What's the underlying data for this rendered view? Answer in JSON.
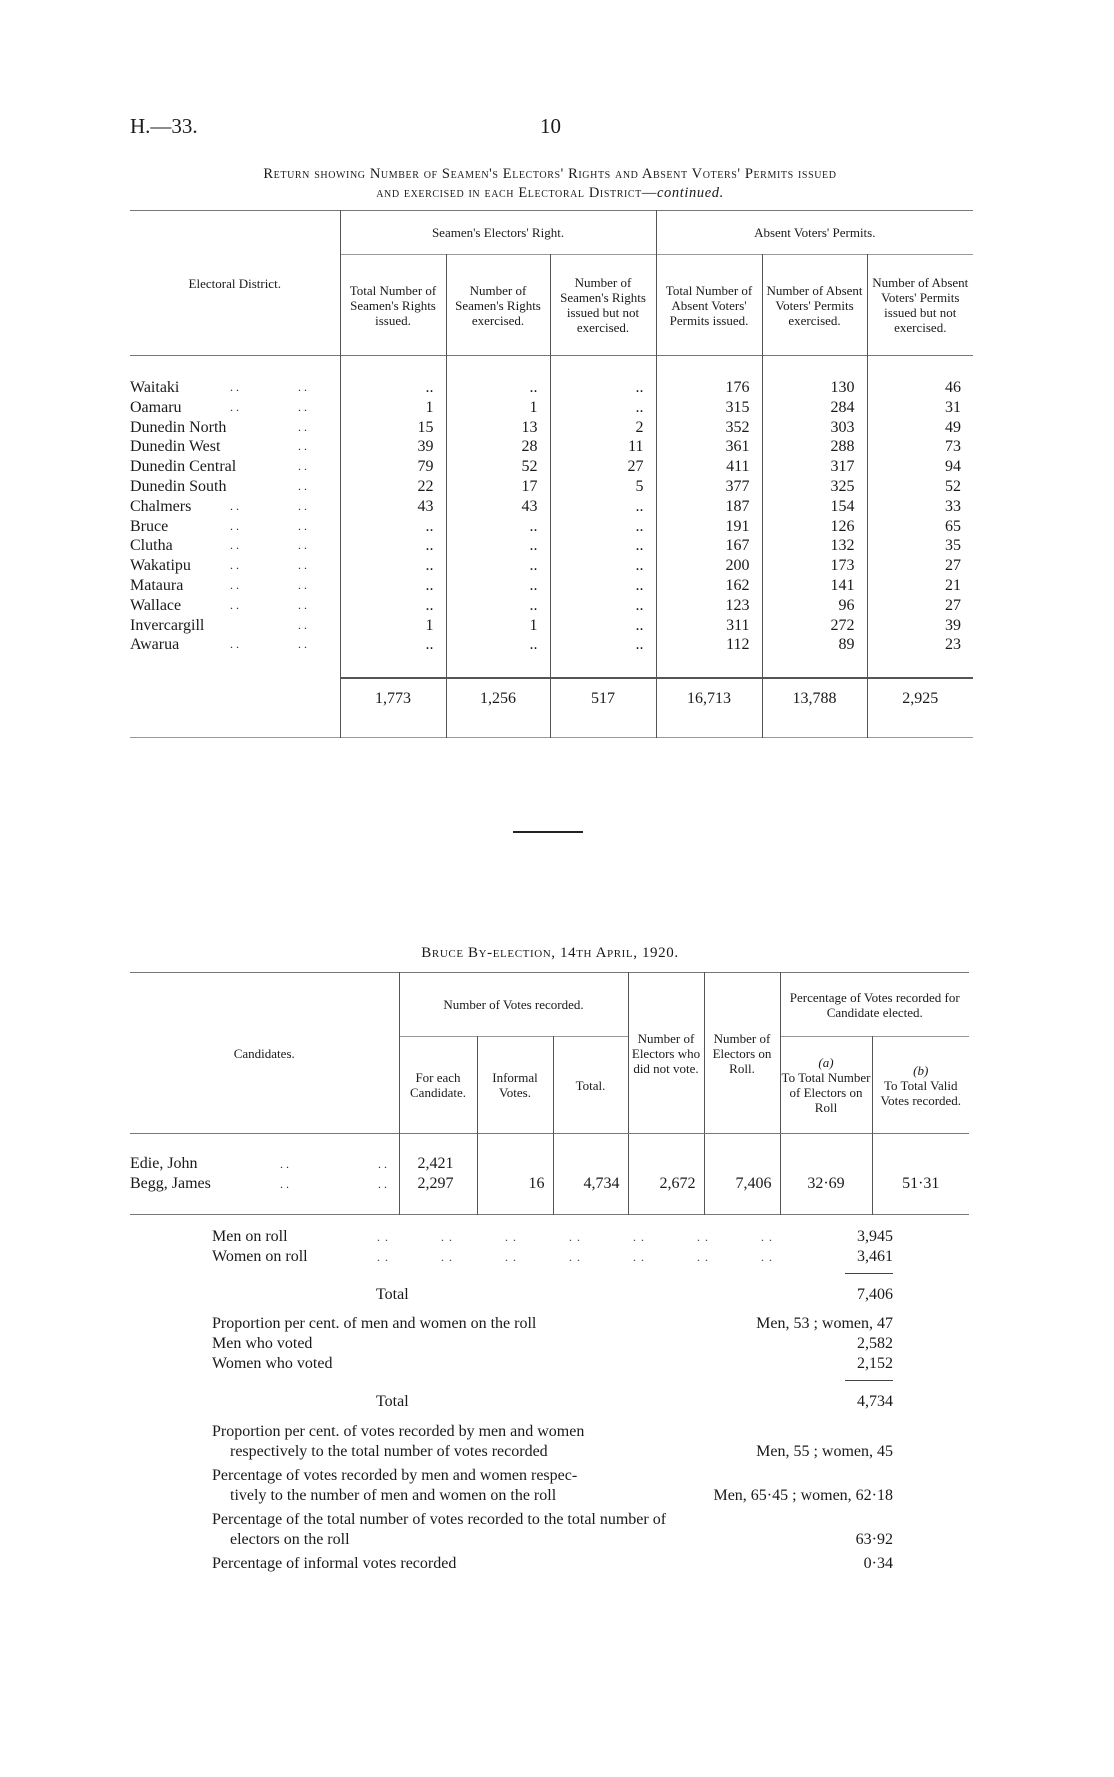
{
  "header": {
    "reference": "H.—33.",
    "page_number": "10"
  },
  "return_table": {
    "title_line1": "Return showing Number of Seamen's Electors' Rights and Absent Voters' Permits issued",
    "title_line2_main": "and exercised in each Electoral District—",
    "title_line2_italic": "continued.",
    "col_district": "Electoral District.",
    "group_seamen": "Seamen's Electors' Right.",
    "group_absent": "Absent Voters' Permits.",
    "columns": [
      "Total Number of Seamen's Rights issued.",
      "Number of Seamen's Rights exercised.",
      "Number of Seamen's Rights issued but not exercised.",
      "Total Number of Absent Voters' Permits issued.",
      "Number of Absent Voters' Permits exercised.",
      "Number of Absent Voters' Permits issued but not exercised."
    ],
    "rows": [
      {
        "district": "Waitaki",
        "values": [
          "..",
          "..",
          "..",
          "176",
          "130",
          "46"
        ]
      },
      {
        "district": "Oamaru",
        "values": [
          "1",
          "1",
          "..",
          "315",
          "284",
          "31"
        ]
      },
      {
        "district": "Dunedin North",
        "values": [
          "15",
          "13",
          "2",
          "352",
          "303",
          "49"
        ]
      },
      {
        "district": "Dunedin West",
        "values": [
          "39",
          "28",
          "11",
          "361",
          "288",
          "73"
        ]
      },
      {
        "district": "Dunedin Central",
        "values": [
          "79",
          "52",
          "27",
          "411",
          "317",
          "94"
        ]
      },
      {
        "district": "Dunedin South",
        "values": [
          "22",
          "17",
          "5",
          "377",
          "325",
          "52"
        ]
      },
      {
        "district": "Chalmers",
        "values": [
          "43",
          "43",
          "..",
          "187",
          "154",
          "33"
        ]
      },
      {
        "district": "Bruce",
        "values": [
          "..",
          "..",
          "..",
          "191",
          "126",
          "65"
        ]
      },
      {
        "district": "Clutha",
        "values": [
          "..",
          "..",
          "..",
          "167",
          "132",
          "35"
        ]
      },
      {
        "district": "Wakatipu",
        "values": [
          "..",
          "..",
          "..",
          "200",
          "173",
          "27"
        ]
      },
      {
        "district": "Mataura",
        "values": [
          "..",
          "..",
          "..",
          "162",
          "141",
          "21"
        ]
      },
      {
        "district": "Wallace",
        "values": [
          "..",
          "..",
          "..",
          "123",
          "96",
          "27"
        ]
      },
      {
        "district": "Invercargill",
        "values": [
          "1",
          "1",
          "..",
          "311",
          "272",
          "39"
        ]
      },
      {
        "district": "Awarua",
        "values": [
          "..",
          "..",
          "..",
          "112",
          "89",
          "23"
        ]
      }
    ],
    "totals": [
      "1,773",
      "1,256",
      "517",
      "16,713",
      "13,788",
      "2,925"
    ]
  },
  "by_election": {
    "title": "Bruce By-election, 14th April, 1920.",
    "col_candidates": "Candidates.",
    "group_votes": "Number of Votes recorded.",
    "col_for_each": "For each Candidate.",
    "col_informal": "Informal Votes.",
    "col_total": "Total.",
    "col_did_not_vote": "Number of Electors who did not vote.",
    "col_on_roll": "Number of Electors on Roll.",
    "group_percentage": "Percentage of Votes recorded for Candidate elected.",
    "col_a_mark": "(a)",
    "col_a": "To Total Number of Electors on Roll",
    "col_b_mark": "(b)",
    "col_b": "To Total Valid Votes recorded.",
    "candidates": [
      {
        "name": "Edie, John",
        "votes": "2,421"
      },
      {
        "name": "Begg, James",
        "votes": "2,297"
      }
    ],
    "informal": "16",
    "total": "4,734",
    "did_not_vote": "2,672",
    "on_roll": "7,406",
    "pct_a": "32·69",
    "pct_b": "51·31"
  },
  "stats": {
    "men_on_roll": {
      "label": "Men on roll",
      "value": "3,945"
    },
    "women_on_roll": {
      "label": "Women on roll",
      "value": "3,461"
    },
    "total_roll": {
      "label": "Total",
      "value": "7,406"
    },
    "proportion_roll": {
      "label": "Proportion per cent. of men and women on the roll",
      "value": "Men, 53 ;  women, 47"
    },
    "men_voted": {
      "label": "Men who voted",
      "value": "2,582"
    },
    "women_voted": {
      "label": "Women who voted",
      "value": "2,152"
    },
    "total_voted": {
      "label": "Total",
      "value": "4,734"
    },
    "proportion_votes": {
      "label1": "Proportion per cent. of votes recorded by men and women",
      "label2": "respectively to the total number of votes recorded",
      "value": "Men, 55 ;  women, 45"
    },
    "percentage_votes_roll": {
      "label1": "Percentage of votes recorded by men and women respec-",
      "label2": "tively to the number of men and women on the roll",
      "value": "Men, 65·45 ;  women, 62·18"
    },
    "percentage_total": {
      "label1": "Percentage of the total number of votes recorded to the total number of",
      "label2": "electors on the roll",
      "value": "63·92"
    },
    "percentage_informal": {
      "label": "Percentage of informal votes recorded",
      "value": "0·34"
    }
  }
}
